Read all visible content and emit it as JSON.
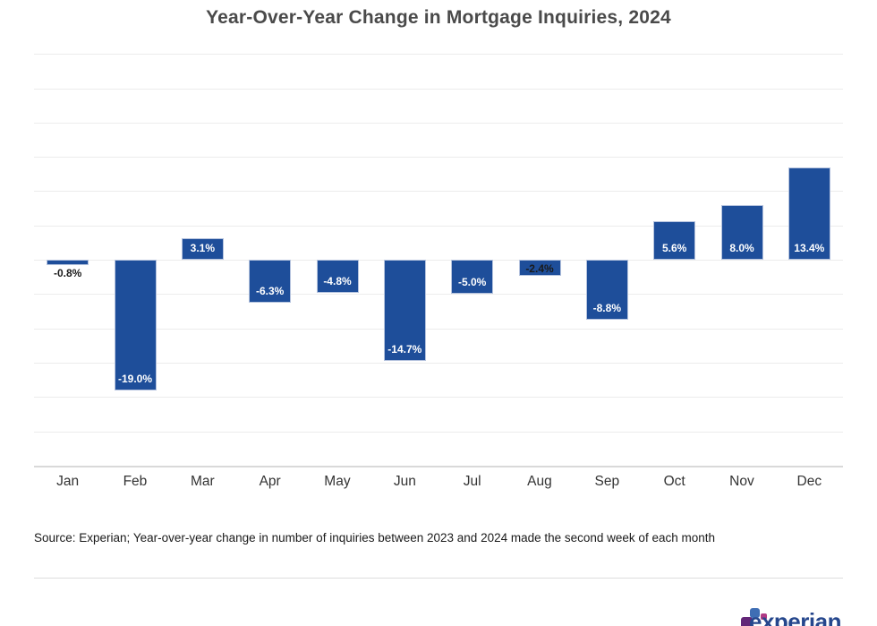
{
  "chart_data": {
    "type": "bar",
    "title": "Year-Over-Year Change in Mortgage Inquiries, 2024",
    "categories": [
      "Jan",
      "Feb",
      "Mar",
      "Apr",
      "May",
      "Jun",
      "Jul",
      "Aug",
      "Sep",
      "Oct",
      "Nov",
      "Dec"
    ],
    "values": [
      -0.8,
      -19.0,
      3.1,
      -6.3,
      -4.8,
      -14.7,
      -5.0,
      -2.4,
      -8.8,
      5.6,
      8.0,
      13.4
    ],
    "labels": [
      "-0.8%",
      "-19.0%",
      "3.1%",
      "-6.3%",
      "-4.8%",
      "-14.7%",
      "-5.0%",
      "-2.4%",
      "-8.8%",
      "5.6%",
      "8.0%",
      "13.4%"
    ],
    "xlabel": "",
    "ylabel": "",
    "ylim": [
      -30,
      30
    ],
    "grid_step": 5,
    "grid": true,
    "legend": false,
    "bar_color": "#1E4E9A",
    "bar_edge_color": "#B5C3DE",
    "label_color_inside": "#FFFFFF",
    "label_color_outside": "#1A1A1A",
    "gridline_color": "#ECECEC",
    "axis_line_color": "#D9D9D9"
  },
  "source_note": "Source: Experian; Year-over-year change in number of inquiries between 2023 and 2024 made the second week of each month",
  "branding": {
    "logo_text": "experian",
    "wordmark_color": "#26478D",
    "square_purple": "#632678",
    "square_blue": "#3F6EB4",
    "square_pink": "#B13A85"
  }
}
